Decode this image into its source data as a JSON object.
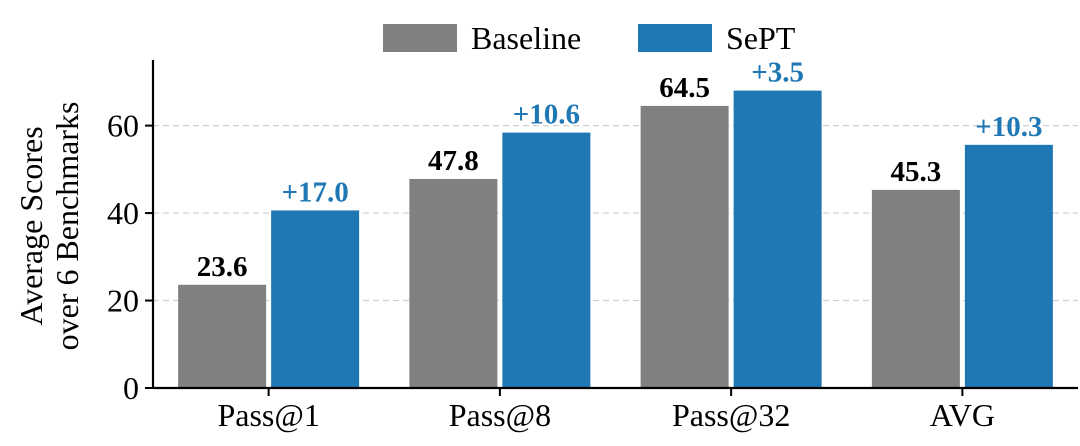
{
  "chart_data": {
    "type": "bar",
    "categories": [
      "Pass@1",
      "Pass@8",
      "Pass@32",
      "AVG"
    ],
    "series": [
      {
        "name": "Baseline",
        "color": "#808080",
        "values": [
          23.6,
          47.8,
          64.5,
          45.3
        ]
      },
      {
        "name": "SePT",
        "color": "#1f77b4",
        "values": [
          40.6,
          58.4,
          68.0,
          55.6
        ]
      }
    ],
    "value_labels": {
      "Baseline": [
        "23.6",
        "47.8",
        "64.5",
        "45.3"
      ],
      "SePT": [
        "+17.0",
        "+10.6",
        "+3.5",
        "+10.3"
      ]
    },
    "ylabel_lines": [
      "Average Scores",
      "over 6 Benchmarks"
    ],
    "yticks": [
      0,
      20,
      40,
      60
    ],
    "ylim": [
      0,
      75
    ],
    "grid": true,
    "legend_position": "top-center"
  }
}
